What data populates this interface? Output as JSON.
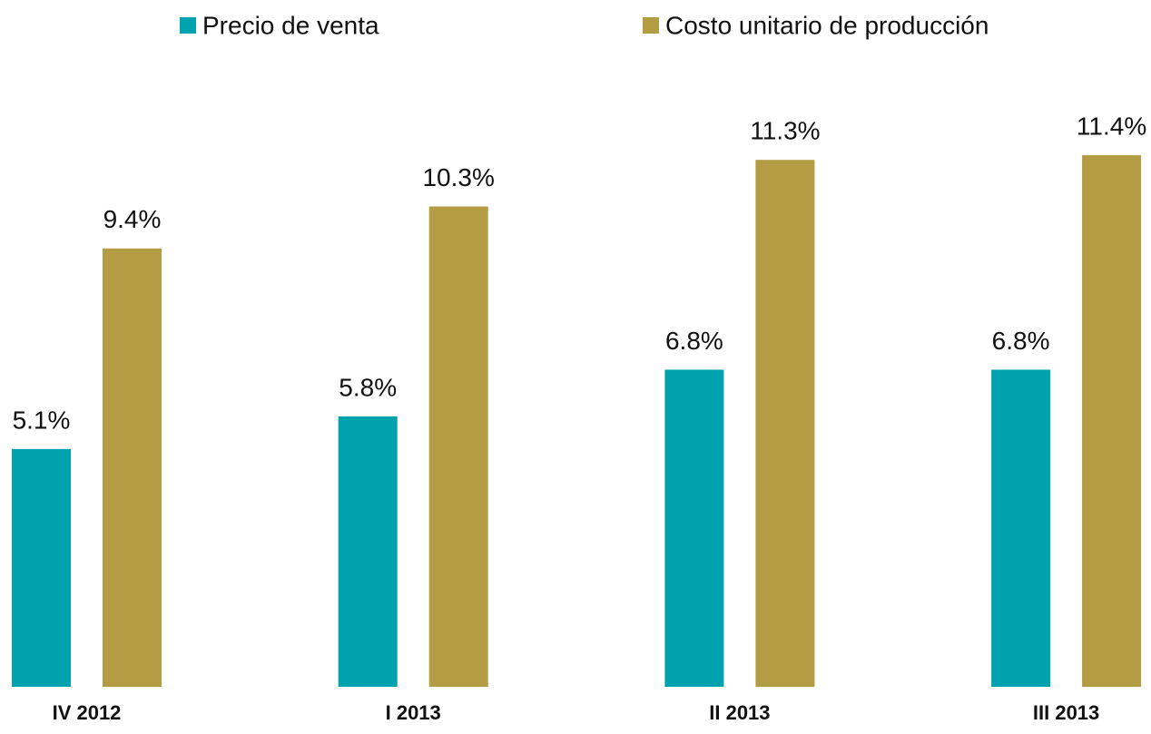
{
  "chart_data": {
    "type": "bar",
    "categories": [
      "IV 2012",
      "I 2013",
      "II 2013",
      "III 2013"
    ],
    "series": [
      {
        "name": "Precio de venta",
        "color": "#00a2ae",
        "values": [
          5.1,
          5.8,
          6.8,
          6.8
        ],
        "value_labels": [
          "5.1%",
          "5.8%",
          "6.8%",
          "6.8%"
        ]
      },
      {
        "name": "Costo unitario de producción",
        "color": "#b49c45",
        "values": [
          9.4,
          10.3,
          11.3,
          11.4
        ],
        "value_labels": [
          "9.4%",
          "10.3%",
          "11.3%",
          "11.4%"
        ]
      }
    ],
    "legend": "top"
  }
}
